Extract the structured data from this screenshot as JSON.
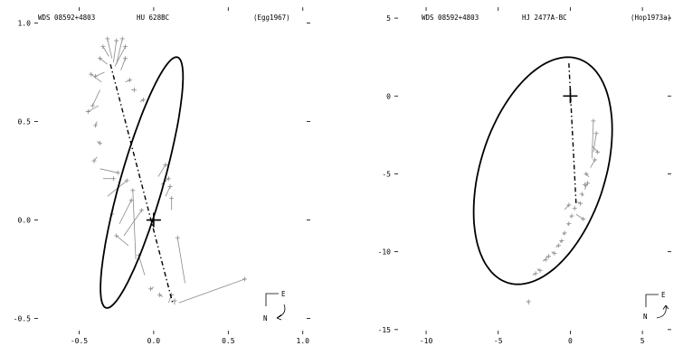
{
  "panels": [
    {
      "header": {
        "wds": "WDS 08592+4803",
        "name": "HU  628BC",
        "ref": "(Egg1967)"
      },
      "x_ticks": [
        {
          "v": -0.5,
          "label": "-0.5"
        },
        {
          "v": 0.0,
          "label": "0.0"
        },
        {
          "v": 0.5,
          "label": "0.5"
        },
        {
          "v": 1.0,
          "label": "1.0"
        }
      ],
      "y_ticks": [
        {
          "v": 1.0,
          "label": "1.0"
        },
        {
          "v": 0.5,
          "label": "0.5"
        },
        {
          "v": 0.0,
          "label": "0.0"
        },
        {
          "v": -0.5,
          "label": "-0.5"
        }
      ],
      "xlim": [
        -0.8,
        1.05
      ],
      "ylim": [
        -0.58,
        1.08
      ],
      "orbit": {
        "cx": -0.08,
        "cy": 0.19,
        "a": 0.68,
        "b": 0.14,
        "angle_deg": 69
      },
      "node_line": [
        [
          -0.29,
          0.79
        ],
        [
          0.13,
          -0.43
        ]
      ],
      "star": [
        0.0,
        0.0
      ],
      "compass": {
        "east": "E",
        "north": "N"
      },
      "observations": [
        [
          -0.28,
          0.82,
          -0.31,
          0.92
        ],
        [
          -0.3,
          0.83,
          -0.34,
          0.88
        ],
        [
          -0.27,
          0.8,
          -0.25,
          0.91
        ],
        [
          -0.25,
          0.79,
          -0.21,
          0.92
        ],
        [
          -0.26,
          0.78,
          -0.19,
          0.88
        ],
        [
          -0.22,
          0.76,
          -0.19,
          0.82
        ],
        [
          -0.31,
          0.79,
          -0.36,
          0.82
        ],
        [
          -0.33,
          0.75,
          -0.39,
          0.73
        ],
        [
          -0.35,
          0.7,
          -0.42,
          0.74
        ],
        [
          -0.36,
          0.66,
          -0.41,
          0.58
        ],
        [
          -0.37,
          0.58,
          -0.44,
          0.55
        ],
        [
          -0.19,
          0.7,
          -0.16,
          0.71
        ],
        [
          -0.15,
          0.66,
          -0.13,
          0.66
        ],
        [
          -0.09,
          0.6,
          -0.07,
          0.61
        ],
        [
          -0.38,
          0.5,
          -0.39,
          0.48
        ],
        [
          -0.38,
          0.4,
          -0.36,
          0.39
        ],
        [
          -0.38,
          0.32,
          -0.4,
          0.3
        ],
        [
          -0.36,
          0.26,
          -0.24,
          0.24
        ],
        [
          -0.34,
          0.21,
          -0.27,
          0.21
        ],
        [
          -0.31,
          0.12,
          -0.18,
          0.2
        ],
        [
          -0.27,
          0.06,
          -0.28,
          0.03
        ],
        [
          -0.23,
          -0.02,
          -0.15,
          0.1
        ],
        [
          -0.2,
          -0.08,
          -0.08,
          0.05
        ],
        [
          -0.17,
          -0.13,
          -0.25,
          -0.08
        ],
        [
          -0.12,
          -0.2,
          -0.14,
          0.15
        ],
        [
          -0.06,
          -0.28,
          -0.1,
          -0.18
        ],
        [
          0.0,
          -0.34,
          -0.02,
          -0.35
        ],
        [
          0.06,
          -0.39,
          0.04,
          -0.38
        ],
        [
          0.1,
          -0.42,
          0.12,
          -0.38
        ],
        [
          0.14,
          -0.43,
          0.14,
          -0.41
        ],
        [
          0.17,
          -0.42,
          0.61,
          -0.3
        ],
        [
          0.21,
          -0.32,
          0.16,
          -0.09
        ],
        [
          0.05,
          0.18,
          0.1,
          0.21
        ],
        [
          0.08,
          0.12,
          0.11,
          0.17
        ],
        [
          0.03,
          0.22,
          0.08,
          0.28
        ],
        [
          0.12,
          0.05,
          0.12,
          0.11
        ]
      ]
    },
    {
      "header": {
        "wds": "WDS 08592+4803",
        "name": "HJ 2477A-BC",
        "ref": "(Hop1973a)"
      },
      "x_ticks": [
        {
          "v": -10,
          "label": "-10"
        },
        {
          "v": -5,
          "label": "-5"
        },
        {
          "v": 0,
          "label": "0"
        },
        {
          "v": 5,
          "label": "5"
        }
      ],
      "y_ticks": [
        {
          "v": 5,
          "label": "5"
        },
        {
          "v": 0,
          "label": "0"
        },
        {
          "v": -5,
          "label": "-5"
        },
        {
          "v": -10,
          "label": "-10"
        },
        {
          "v": -15,
          "label": "-15"
        }
      ],
      "xlim": [
        -12.2,
        7.0
      ],
      "ylim": [
        -15.3,
        5.7
      ],
      "orbit": {
        "cx": -1.9,
        "cy": -4.8,
        "a": 7.6,
        "b": 4.3,
        "angle_deg": 70
      },
      "node_line": [
        [
          -0.1,
          2.1
        ],
        [
          0.4,
          -6.9
        ]
      ],
      "star": [
        0.0,
        0.0
      ],
      "compass": {
        "east": "E",
        "north": "N"
      },
      "observations": [
        [
          -2.9,
          -13.4,
          -2.9,
          -13.2
        ],
        [
          -2.6,
          -11.5,
          -2.4,
          -11.4
        ],
        [
          -2.3,
          -11.1,
          -2.1,
          -11.2
        ],
        [
          -1.9,
          -10.6,
          -1.7,
          -10.5
        ],
        [
          -1.7,
          -10.4,
          -1.5,
          -10.3
        ],
        [
          -1.3,
          -10.0,
          -1.1,
          -10.1
        ],
        [
          -1.0,
          -9.7,
          -0.8,
          -9.6
        ],
        [
          -0.7,
          -9.4,
          -0.6,
          -9.3
        ],
        [
          -0.5,
          -8.9,
          -0.4,
          -8.8
        ],
        [
          -0.2,
          -8.3,
          -0.1,
          -8.2
        ],
        [
          0.0,
          -7.8,
          0.1,
          -7.7
        ],
        [
          0.3,
          -7.3,
          0.3,
          -7.2
        ],
        [
          0.5,
          -6.8,
          0.7,
          -6.9
        ],
        [
          0.9,
          -6.4,
          0.8,
          -6.3
        ],
        [
          1.1,
          -5.8,
          1.0,
          -5.7
        ],
        [
          1.3,
          -5.2,
          1.1,
          -5.0
        ],
        [
          1.4,
          -4.6,
          1.7,
          -4.1
        ],
        [
          1.5,
          -4.0,
          1.6,
          -1.6
        ],
        [
          1.6,
          -3.6,
          1.8,
          -2.4
        ],
        [
          1.5,
          -3.2,
          1.9,
          -3.6
        ],
        [
          0.4,
          -7.6,
          0.9,
          -7.9
        ],
        [
          -0.4,
          -7.3,
          -0.1,
          -7.0
        ],
        [
          1.0,
          -6.0,
          1.2,
          -5.6
        ]
      ]
    }
  ]
}
